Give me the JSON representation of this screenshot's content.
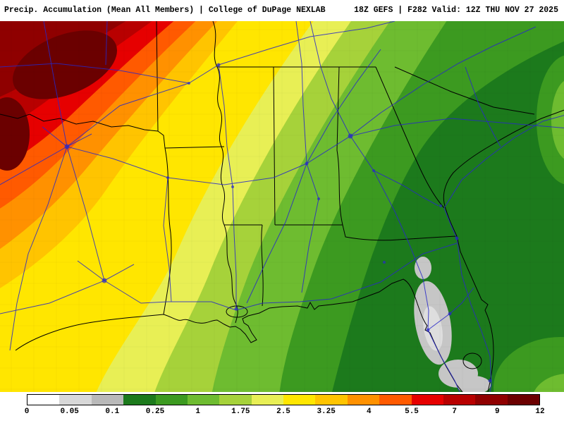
{
  "header": {
    "left": "Precip. Accumulation (Mean All Members) | College of DuPage NEXLAB",
    "right": "18Z GEFS | F282 Valid: 12Z THU NOV 27 2025"
  },
  "colorbar": {
    "labels": [
      "0",
      "0.05",
      "0.1",
      "0.25",
      "1",
      "1.75",
      "2.5",
      "3.25",
      "4",
      "5.5",
      "7",
      "9",
      "12"
    ],
    "colors": [
      "#ffffff",
      "#d8d8d8",
      "#b9b9b9",
      "#1c7a1c",
      "#3c9a20",
      "#6ebc30",
      "#a6d23a",
      "#e8ef55",
      "#ffe600",
      "#ffc400",
      "#ff9100",
      "#ff5a00",
      "#e60000",
      "#b80000",
      "#8f0000",
      "#6b0000"
    ]
  },
  "map": {
    "border_color": "#000000",
    "road_color": "#2828c8",
    "low_precip_patch_color": "#c6c6c6",
    "background_color": "#1c7a1c"
  }
}
